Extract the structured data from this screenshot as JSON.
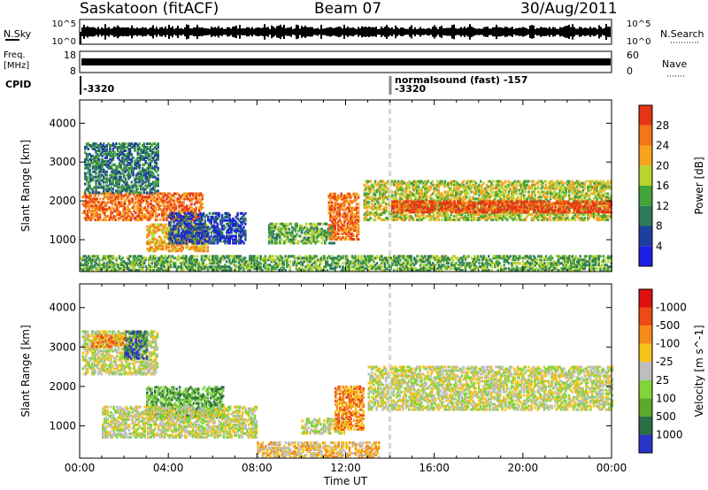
{
  "header": {
    "station": "Saskatoon (fitACF)",
    "beam": "Beam 07",
    "date": "30/Aug/2011"
  },
  "top_panels": {
    "nsky_label": "N.Sky",
    "nsky_ticks": [
      "10^5",
      "10^0"
    ],
    "nsearch_label": "N.Search",
    "nsearch_ticks": [
      "10^5",
      "10^0"
    ],
    "freq_label": "Freq.",
    "freq_unit": "[MHz]",
    "freq_ticks": [
      "18",
      "8"
    ],
    "nave_label": "Nave",
    "nave_ticks": [
      "60",
      "0"
    ],
    "cpid_label": "CPID",
    "cpid_segments": [
      {
        "time_h": 0.0,
        "text": "-3320"
      },
      {
        "time_h": 14.0,
        "text": "-3320"
      }
    ],
    "mode_text": "normalsound (fast) -157"
  },
  "chart_data": [
    {
      "type": "heatmap",
      "name": "power",
      "ylabel": "Slant Range [km]",
      "x_range_h": [
        0,
        24
      ],
      "ylim": [
        180,
        4600
      ],
      "yticks": [
        1000,
        2000,
        3000,
        4000
      ],
      "colorbar": {
        "label": "Power [dB]",
        "ticks": [
          "4",
          "8",
          "12",
          "16",
          "20",
          "24",
          "28"
        ],
        "colors": [
          "#1f1fe6",
          "#1d3f9e",
          "#2f7a5a",
          "#44a33a",
          "#b9d22e",
          "#f6a21c",
          "#f57416",
          "#e53516"
        ]
      },
      "echo_regions": [
        {
          "t0": 0.1,
          "t1": 5.5,
          "r0": 1500,
          "r1": 2200,
          "level": 6
        },
        {
          "t0": 0.2,
          "t1": 3.5,
          "r0": 2200,
          "r1": 3500,
          "level": 2
        },
        {
          "t0": 3.0,
          "t1": 5.8,
          "r0": 700,
          "r1": 1400,
          "level": 5
        },
        {
          "t0": 4.0,
          "t1": 7.5,
          "r0": 900,
          "r1": 1700,
          "level": 1
        },
        {
          "t0": 8.5,
          "t1": 11.5,
          "r0": 900,
          "r1": 1400,
          "level": 3
        },
        {
          "t0": 11.2,
          "t1": 12.6,
          "r0": 1000,
          "r1": 2200,
          "level": 6
        },
        {
          "t0": 12.8,
          "t1": 24.0,
          "r0": 1500,
          "r1": 2500,
          "level": 4
        },
        {
          "t0": 14.0,
          "t1": 24.0,
          "r0": 1700,
          "r1": 2000,
          "level": 7
        },
        {
          "t0": 0.0,
          "t1": 24.0,
          "r0": 200,
          "r1": 600,
          "level": 3
        }
      ]
    },
    {
      "type": "heatmap",
      "name": "velocity",
      "ylabel": "Slant Range [km]",
      "xlabel": "Time UT",
      "x_range_h": [
        0,
        24
      ],
      "ylim": [
        180,
        4600
      ],
      "yticks": [
        1000,
        2000,
        3000,
        4000
      ],
      "xticks": [
        "00:00",
        "04:00",
        "08:00",
        "12:00",
        "16:00",
        "20:00",
        "00:00"
      ],
      "colorbar": {
        "label": "Velocity [m s^-1]",
        "ticks": [
          "1000",
          "500",
          "100",
          "25",
          "-25",
          "-100",
          "-500",
          "-1000"
        ],
        "colors": [
          "#2a34c9",
          "#2b6f45",
          "#5aa82e",
          "#7fd43a",
          "#bdbdbd",
          "#f4c21b",
          "#f58b16",
          "#f04a14",
          "#e01010"
        ]
      },
      "echo_regions": [
        {
          "t0": 0.1,
          "t1": 3.5,
          "r0": 2300,
          "r1": 3400,
          "level": 4
        },
        {
          "t0": 2.0,
          "t1": 3.0,
          "r0": 2700,
          "r1": 3400,
          "level": 1
        },
        {
          "t0": 0.5,
          "t1": 2.0,
          "r0": 3000,
          "r1": 3300,
          "level": 6
        },
        {
          "t0": 3.0,
          "t1": 6.5,
          "r0": 1200,
          "r1": 2000,
          "level": 2
        },
        {
          "t0": 1.0,
          "t1": 8.0,
          "r0": 700,
          "r1": 1500,
          "level": 4
        },
        {
          "t0": 8.0,
          "t1": 13.5,
          "r0": 200,
          "r1": 600,
          "level": 5
        },
        {
          "t0": 10.0,
          "t1": 12.0,
          "r0": 800,
          "r1": 1200,
          "level": 4
        },
        {
          "t0": 11.5,
          "t1": 12.8,
          "r0": 900,
          "r1": 2000,
          "level": 6
        },
        {
          "t0": 13.0,
          "t1": 24.0,
          "r0": 1400,
          "r1": 2500,
          "level": 4
        }
      ]
    }
  ],
  "colors": {
    "frame": "#000000",
    "grid_marker": "#d6d6d6"
  }
}
